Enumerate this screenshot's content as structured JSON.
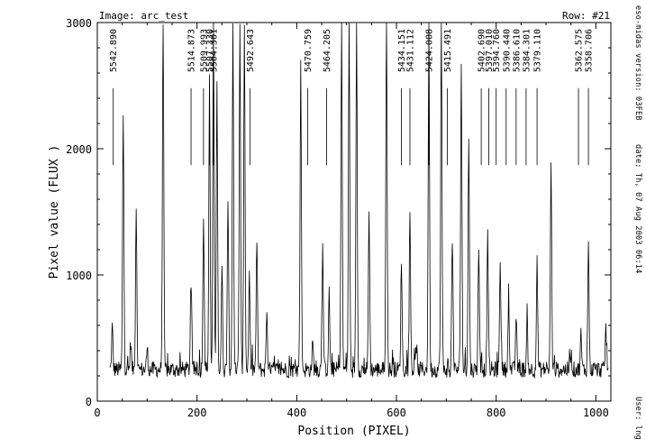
{
  "header": {
    "image_label": "Image: arc_test",
    "row_label": "Row:  #21"
  },
  "side_info": {
    "version": "eso-midas version: 03FEB",
    "date": "date: Th, 07 Aug 2003 06:14",
    "user": "User: lng"
  },
  "chart_data": {
    "type": "line",
    "xlabel": "Position (PIXEL)",
    "ylabel": "Pixel value (FLUX )",
    "xlim": [
      0,
      1030
    ],
    "ylim": [
      0,
      3000
    ],
    "x_ticks": [
      0,
      200,
      400,
      600,
      800,
      1000
    ],
    "y_ticks": [
      0,
      1000,
      2000,
      3000
    ],
    "grid": false,
    "baseline": 250,
    "x_start": 25,
    "x_end": 1025,
    "peaks": [
      {
        "x": 30,
        "y": 590
      },
      {
        "x": 52,
        "y": 2280
      },
      {
        "x": 67,
        "y": 470
      },
      {
        "x": 78,
        "y": 1550
      },
      {
        "x": 100,
        "y": 420
      },
      {
        "x": 132,
        "y": 3000
      },
      {
        "x": 188,
        "y": 950
      },
      {
        "x": 213,
        "y": 1470
      },
      {
        "x": 225,
        "y": 2500
      },
      {
        "x": 233,
        "y": 3000
      },
      {
        "x": 240,
        "y": 2490
      },
      {
        "x": 250,
        "y": 1050
      },
      {
        "x": 262,
        "y": 1600
      },
      {
        "x": 272,
        "y": 3000
      },
      {
        "x": 286,
        "y": 3000
      },
      {
        "x": 295,
        "y": 3000
      },
      {
        "x": 305,
        "y": 960
      },
      {
        "x": 320,
        "y": 1270
      },
      {
        "x": 340,
        "y": 720
      },
      {
        "x": 408,
        "y": 2650
      },
      {
        "x": 432,
        "y": 460
      },
      {
        "x": 452,
        "y": 1180
      },
      {
        "x": 465,
        "y": 850
      },
      {
        "x": 490,
        "y": 3000
      },
      {
        "x": 505,
        "y": 3000
      },
      {
        "x": 520,
        "y": 3000
      },
      {
        "x": 545,
        "y": 1520
      },
      {
        "x": 580,
        "y": 3000
      },
      {
        "x": 610,
        "y": 1120
      },
      {
        "x": 627,
        "y": 1450
      },
      {
        "x": 640,
        "y": 440
      },
      {
        "x": 665,
        "y": 3000
      },
      {
        "x": 690,
        "y": 3000
      },
      {
        "x": 712,
        "y": 1300
      },
      {
        "x": 730,
        "y": 2700
      },
      {
        "x": 745,
        "y": 2100
      },
      {
        "x": 765,
        "y": 1250
      },
      {
        "x": 783,
        "y": 1310
      },
      {
        "x": 808,
        "y": 1140
      },
      {
        "x": 825,
        "y": 820
      },
      {
        "x": 840,
        "y": 680
      },
      {
        "x": 862,
        "y": 580
      },
      {
        "x": 882,
        "y": 1100
      },
      {
        "x": 910,
        "y": 1880
      },
      {
        "x": 950,
        "y": 400
      },
      {
        "x": 970,
        "y": 530
      },
      {
        "x": 985,
        "y": 1260
      },
      {
        "x": 1020,
        "y": 580
      }
    ],
    "line_ids": [
      {
        "label": "5542.890",
        "x": 32
      },
      {
        "label": "5514.873",
        "x": 188
      },
      {
        "label": "5509.993",
        "x": 213
      },
      {
        "label": "5507.330",
        "x": 225
      },
      {
        "label": "5504.301",
        "x": 233
      },
      {
        "label": "5492.643",
        "x": 306
      },
      {
        "label": "5470.759",
        "x": 422
      },
      {
        "label": "5464.205",
        "x": 460
      },
      {
        "label": "5434.151",
        "x": 610
      },
      {
        "label": "5431.112",
        "x": 627
      },
      {
        "label": "5424.008",
        "x": 665
      },
      {
        "label": "5415.491",
        "x": 702
      },
      {
        "label": "5402.690",
        "x": 770
      },
      {
        "label": "5397.010",
        "x": 785
      },
      {
        "label": "5394.760",
        "x": 800
      },
      {
        "label": "5390.440",
        "x": 820
      },
      {
        "label": "5386.610",
        "x": 840
      },
      {
        "label": "5384.301",
        "x": 860
      },
      {
        "label": "5379.110",
        "x": 882
      },
      {
        "label": "5362.575",
        "x": 965
      },
      {
        "label": "5358.706",
        "x": 985
      }
    ]
  }
}
